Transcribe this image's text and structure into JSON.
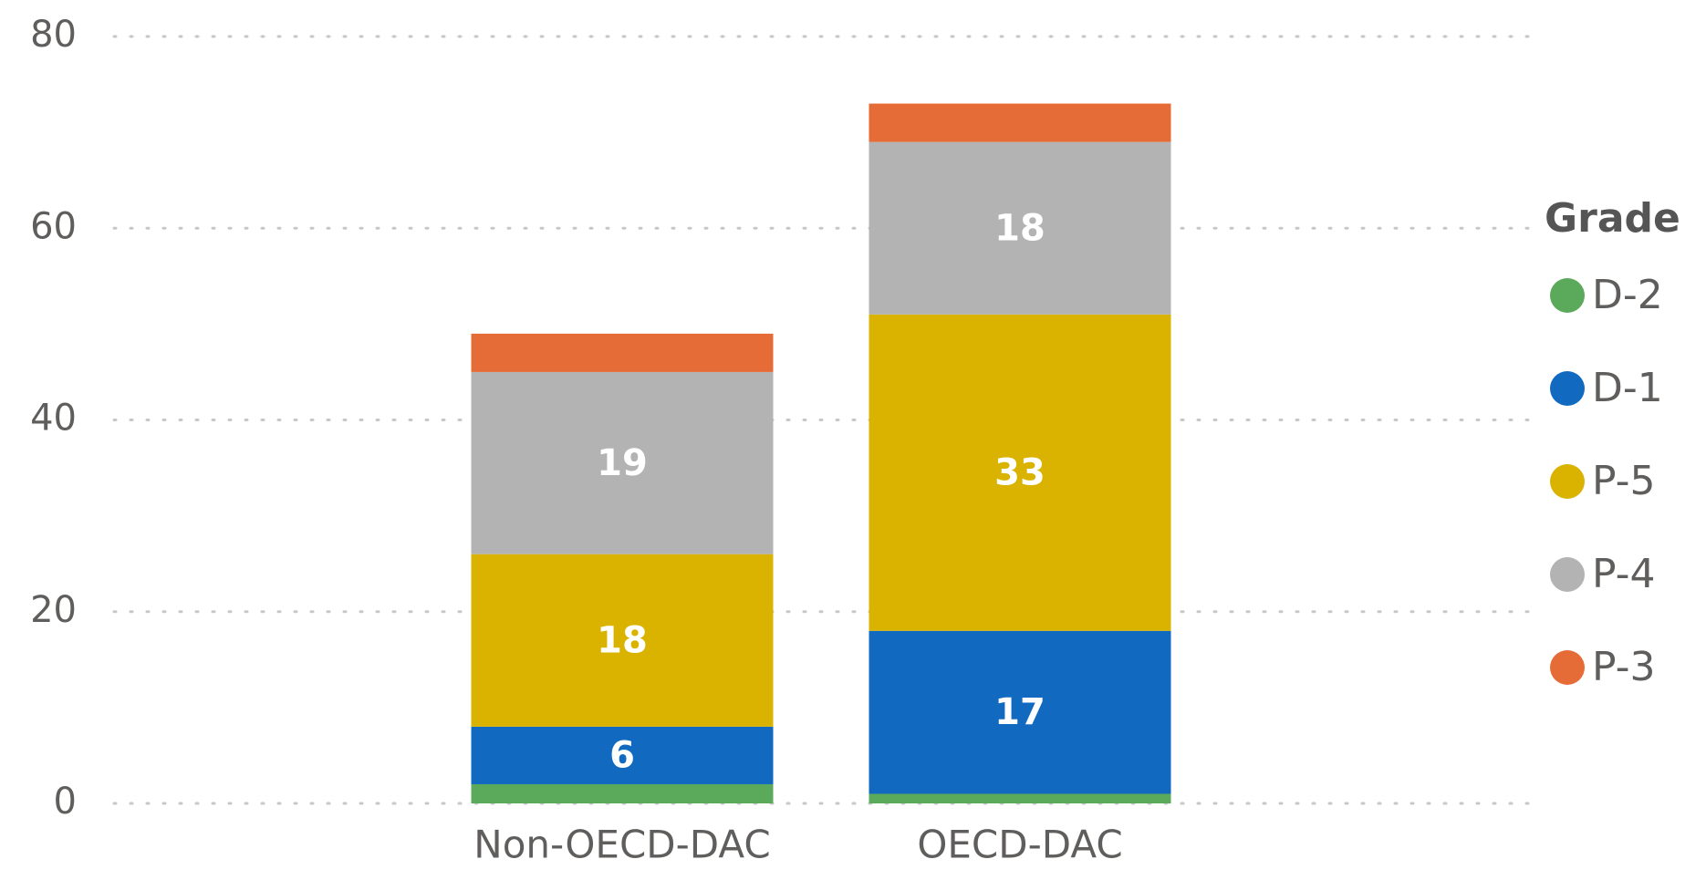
{
  "chart_data": {
    "type": "stacked_bar",
    "legend_title": "Grade",
    "categories": [
      "Non-OECD-DAC",
      "OECD-DAC"
    ],
    "series": [
      {
        "name": "D-2",
        "color": "#5BAA5C",
        "values": [
          2,
          1
        ],
        "value_labels": [
          null,
          null
        ]
      },
      {
        "name": "D-1",
        "color": "#1169C0",
        "values": [
          6,
          17
        ],
        "value_labels": [
          "6",
          "17"
        ]
      },
      {
        "name": "P-5",
        "color": "#D9B300",
        "values": [
          18,
          33
        ],
        "value_labels": [
          "18",
          "33"
        ]
      },
      {
        "name": "P-4",
        "color": "#B3B3B3",
        "values": [
          19,
          18
        ],
        "value_labels": [
          "19",
          "18"
        ]
      },
      {
        "name": "P-3",
        "color": "#E66C37",
        "values": [
          4,
          4
        ],
        "value_labels": [
          null,
          null
        ]
      }
    ],
    "ylim": [
      0,
      80
    ],
    "yticks": [
      0,
      20,
      40,
      60,
      80
    ],
    "grid": true,
    "legend": "right"
  }
}
